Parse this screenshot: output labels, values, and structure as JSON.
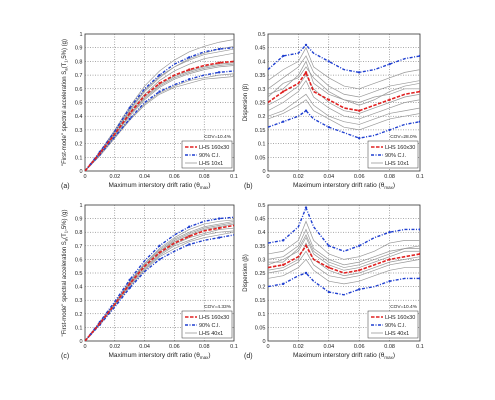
{
  "shared": {
    "ylabel_left_prefix": "\"First-mode\" spectral acceleration S",
    "ylabel_left_suffix": "(T",
    "ylabel_left_tail": ",5%) (g)",
    "ylabel_sub_a": "a",
    "ylabel_sub_1": "1",
    "ylabel_right": "Dispersion (β)",
    "xlabel_main": "Maximum interstory drift ratio (θ",
    "xlabel_sub": "max",
    "xlabel_end": ")"
  },
  "colors": {
    "median": "#e02020",
    "ci": "#1f3fd0",
    "samples": "#999999",
    "grid": "#555555"
  },
  "chart_data": [
    {
      "panel": "(a)",
      "type": "line",
      "xlim": [
        0,
        0.1
      ],
      "ylim": [
        0,
        1
      ],
      "xticks": [
        "0",
        "0.02",
        "0.04",
        "0.06",
        "0.08",
        "0.1"
      ],
      "yticks": [
        "0",
        "0.1",
        "0.2",
        "0.3",
        "0.4",
        "0.5",
        "0.6",
        "0.7",
        "0.8",
        "0.9",
        "1"
      ],
      "annotation": "COV=10.4%",
      "legend": [
        "LHS 160x30",
        "90% C.I.",
        "LHS 10x1"
      ],
      "x": [
        0,
        0.01,
        0.02,
        0.03,
        0.04,
        0.05,
        0.06,
        0.07,
        0.08,
        0.09,
        0.1
      ],
      "series": [
        {
          "name": "LHS 160x30",
          "role": "median",
          "values": [
            0,
            0.13,
            0.27,
            0.42,
            0.55,
            0.64,
            0.7,
            0.74,
            0.77,
            0.79,
            0.8
          ]
        },
        {
          "name": "90% C.I.",
          "role": "ci",
          "values": [
            0,
            0.14,
            0.29,
            0.46,
            0.6,
            0.7,
            0.78,
            0.83,
            0.87,
            0.89,
            0.9
          ]
        },
        {
          "role": "ci",
          "values": [
            0,
            0.12,
            0.25,
            0.38,
            0.5,
            0.58,
            0.63,
            0.67,
            0.7,
            0.72,
            0.73
          ]
        },
        {
          "name": "LHS 10x1",
          "role": "sample",
          "values": [
            0,
            0.14,
            0.3,
            0.47,
            0.62,
            0.73,
            0.81,
            0.87,
            0.91,
            0.94,
            0.96
          ]
        },
        {
          "role": "sample",
          "values": [
            0,
            0.14,
            0.29,
            0.45,
            0.59,
            0.69,
            0.76,
            0.81,
            0.85,
            0.87,
            0.89
          ]
        },
        {
          "role": "sample",
          "values": [
            0,
            0.13,
            0.28,
            0.43,
            0.56,
            0.66,
            0.73,
            0.78,
            0.82,
            0.84,
            0.86
          ]
        },
        {
          "role": "sample",
          "values": [
            0,
            0.13,
            0.27,
            0.41,
            0.54,
            0.63,
            0.69,
            0.73,
            0.76,
            0.78,
            0.79
          ]
        },
        {
          "role": "sample",
          "values": [
            0,
            0.12,
            0.26,
            0.4,
            0.52,
            0.61,
            0.67,
            0.71,
            0.74,
            0.76,
            0.77
          ]
        },
        {
          "role": "sample",
          "values": [
            0,
            0.12,
            0.25,
            0.38,
            0.49,
            0.57,
            0.62,
            0.66,
            0.68,
            0.7,
            0.71
          ]
        },
        {
          "role": "sample",
          "values": [
            0,
            0.11,
            0.24,
            0.37,
            0.48,
            0.56,
            0.61,
            0.64,
            0.67,
            0.68,
            0.69
          ]
        },
        {
          "role": "sample",
          "values": [
            0,
            0.13,
            0.28,
            0.44,
            0.58,
            0.68,
            0.76,
            0.82,
            0.86,
            0.89,
            0.91
          ]
        },
        {
          "role": "sample",
          "values": [
            0,
            0.12,
            0.26,
            0.41,
            0.53,
            0.62,
            0.68,
            0.72,
            0.75,
            0.77,
            0.78
          ]
        }
      ]
    },
    {
      "panel": "(b)",
      "type": "line",
      "xlim": [
        0,
        0.1
      ],
      "ylim": [
        0,
        0.5
      ],
      "xticks": [
        "0",
        "0.02",
        "0.04",
        "0.06",
        "0.08",
        "0.1"
      ],
      "yticks": [
        "0",
        "0.05",
        "0.1",
        "0.15",
        "0.2",
        "0.25",
        "0.3",
        "0.35",
        "0.4",
        "0.45",
        "0.5"
      ],
      "annotation": "COV=28.0%",
      "legend": [
        "LHS 160x30",
        "90% C.I.",
        "LHS 10x1"
      ],
      "x": [
        0,
        0.01,
        0.02,
        0.025,
        0.03,
        0.04,
        0.05,
        0.06,
        0.07,
        0.08,
        0.09,
        0.1
      ],
      "series": [
        {
          "name": "LHS 160x30",
          "role": "median",
          "values": [
            0.25,
            0.29,
            0.32,
            0.36,
            0.29,
            0.26,
            0.23,
            0.22,
            0.24,
            0.26,
            0.28,
            0.29
          ]
        },
        {
          "name": "90% C.I.",
          "role": "ci",
          "values": [
            0.37,
            0.42,
            0.43,
            0.46,
            0.43,
            0.4,
            0.37,
            0.36,
            0.37,
            0.39,
            0.41,
            0.42
          ]
        },
        {
          "role": "ci",
          "values": [
            0.16,
            0.18,
            0.2,
            0.22,
            0.19,
            0.16,
            0.14,
            0.12,
            0.13,
            0.15,
            0.17,
            0.18
          ]
        },
        {
          "name": "LHS 10x1",
          "role": "sample",
          "values": [
            0.3,
            0.34,
            0.38,
            0.42,
            0.36,
            0.31,
            0.28,
            0.27,
            0.29,
            0.31,
            0.32,
            0.33
          ]
        },
        {
          "role": "sample",
          "values": [
            0.22,
            0.25,
            0.29,
            0.33,
            0.27,
            0.23,
            0.2,
            0.19,
            0.21,
            0.23,
            0.25,
            0.26
          ]
        },
        {
          "role": "sample",
          "values": [
            0.28,
            0.3,
            0.35,
            0.4,
            0.32,
            0.28,
            0.26,
            0.25,
            0.27,
            0.28,
            0.3,
            0.3
          ]
        },
        {
          "role": "sample",
          "values": [
            0.2,
            0.22,
            0.26,
            0.28,
            0.24,
            0.2,
            0.18,
            0.17,
            0.19,
            0.21,
            0.22,
            0.23
          ]
        },
        {
          "role": "sample",
          "values": [
            0.33,
            0.37,
            0.4,
            0.45,
            0.38,
            0.34,
            0.31,
            0.3,
            0.32,
            0.34,
            0.36,
            0.37
          ]
        },
        {
          "role": "sample",
          "values": [
            0.24,
            0.27,
            0.31,
            0.35,
            0.3,
            0.25,
            0.22,
            0.21,
            0.23,
            0.25,
            0.27,
            0.28
          ]
        },
        {
          "role": "sample",
          "values": [
            0.27,
            0.32,
            0.34,
            0.38,
            0.34,
            0.29,
            0.26,
            0.24,
            0.26,
            0.29,
            0.31,
            0.32
          ]
        },
        {
          "role": "sample",
          "values": [
            0.19,
            0.21,
            0.24,
            0.26,
            0.22,
            0.19,
            0.16,
            0.15,
            0.17,
            0.19,
            0.2,
            0.21
          ]
        }
      ]
    },
    {
      "panel": "(c)",
      "type": "line",
      "xlim": [
        0,
        0.1
      ],
      "ylim": [
        0,
        1
      ],
      "xticks": [
        "0",
        "0.02",
        "0.04",
        "0.06",
        "0.08",
        "0.1"
      ],
      "yticks": [
        "0",
        "0.1",
        "0.2",
        "0.3",
        "0.4",
        "0.5",
        "0.6",
        "0.7",
        "0.8",
        "0.9",
        "1"
      ],
      "annotation": "COV=4.33%",
      "legend": [
        "LHS 160x30",
        "90% C.I.",
        "LHS 40x1"
      ],
      "x": [
        0,
        0.01,
        0.02,
        0.03,
        0.04,
        0.05,
        0.06,
        0.07,
        0.08,
        0.09,
        0.1
      ],
      "series": [
        {
          "name": "LHS 160x30",
          "role": "median",
          "values": [
            0,
            0.13,
            0.27,
            0.42,
            0.55,
            0.65,
            0.72,
            0.77,
            0.81,
            0.83,
            0.85
          ]
        },
        {
          "name": "90% C.I.",
          "role": "ci",
          "values": [
            0,
            0.14,
            0.29,
            0.45,
            0.59,
            0.7,
            0.78,
            0.84,
            0.88,
            0.9,
            0.91
          ]
        },
        {
          "role": "ci",
          "values": [
            0,
            0.12,
            0.25,
            0.39,
            0.51,
            0.6,
            0.66,
            0.71,
            0.74,
            0.76,
            0.78
          ]
        },
        {
          "name": "LHS 40x1",
          "role": "sample",
          "values": [
            0,
            0.13,
            0.28,
            0.44,
            0.57,
            0.67,
            0.75,
            0.8,
            0.84,
            0.86,
            0.88
          ]
        },
        {
          "role": "sample",
          "values": [
            0,
            0.13,
            0.27,
            0.43,
            0.56,
            0.66,
            0.73,
            0.78,
            0.82,
            0.84,
            0.86
          ]
        },
        {
          "role": "sample",
          "values": [
            0,
            0.13,
            0.27,
            0.42,
            0.54,
            0.64,
            0.71,
            0.76,
            0.79,
            0.82,
            0.83
          ]
        },
        {
          "role": "sample",
          "values": [
            0,
            0.12,
            0.26,
            0.41,
            0.53,
            0.63,
            0.7,
            0.74,
            0.78,
            0.8,
            0.81
          ]
        },
        {
          "role": "sample",
          "values": [
            0,
            0.14,
            0.28,
            0.43,
            0.57,
            0.68,
            0.76,
            0.82,
            0.86,
            0.88,
            0.89
          ]
        },
        {
          "role": "sample",
          "values": [
            0,
            0.12,
            0.26,
            0.4,
            0.52,
            0.62,
            0.68,
            0.73,
            0.76,
            0.78,
            0.8
          ]
        },
        {
          "role": "sample",
          "values": [
            0,
            0.13,
            0.28,
            0.43,
            0.56,
            0.66,
            0.74,
            0.79,
            0.83,
            0.85,
            0.87
          ]
        }
      ]
    },
    {
      "panel": "(d)",
      "type": "line",
      "xlim": [
        0,
        0.1
      ],
      "ylim": [
        0,
        0.5
      ],
      "xticks": [
        "0",
        "0.02",
        "0.04",
        "0.06",
        "0.08",
        "0.1"
      ],
      "yticks": [
        "0",
        "0.05",
        "0.1",
        "0.15",
        "0.2",
        "0.25",
        "0.3",
        "0.35",
        "0.4",
        "0.45",
        "0.5"
      ],
      "annotation": "COV=10.4%",
      "legend": [
        "LHS 160x30",
        "90% C.I.",
        "LHS 40x1"
      ],
      "x": [
        0,
        0.01,
        0.02,
        0.025,
        0.03,
        0.04,
        0.05,
        0.06,
        0.07,
        0.08,
        0.09,
        0.1
      ],
      "series": [
        {
          "name": "LHS 160x30",
          "role": "median",
          "values": [
            0.27,
            0.28,
            0.31,
            0.35,
            0.3,
            0.27,
            0.25,
            0.26,
            0.28,
            0.3,
            0.31,
            0.32
          ]
        },
        {
          "name": "90% C.I.",
          "role": "ci",
          "values": [
            0.36,
            0.37,
            0.42,
            0.49,
            0.42,
            0.35,
            0.33,
            0.35,
            0.38,
            0.4,
            0.41,
            0.41
          ]
        },
        {
          "role": "ci",
          "values": [
            0.2,
            0.21,
            0.24,
            0.25,
            0.22,
            0.18,
            0.17,
            0.19,
            0.2,
            0.22,
            0.23,
            0.23
          ]
        },
        {
          "name": "LHS 40x1",
          "role": "sample",
          "values": [
            0.3,
            0.31,
            0.35,
            0.41,
            0.34,
            0.3,
            0.28,
            0.29,
            0.31,
            0.33,
            0.34,
            0.35
          ]
        },
        {
          "role": "sample",
          "values": [
            0.25,
            0.26,
            0.29,
            0.33,
            0.28,
            0.24,
            0.23,
            0.24,
            0.26,
            0.28,
            0.29,
            0.3
          ]
        },
        {
          "role": "sample",
          "values": [
            0.28,
            0.3,
            0.33,
            0.38,
            0.32,
            0.28,
            0.26,
            0.27,
            0.29,
            0.31,
            0.33,
            0.33
          ]
        },
        {
          "role": "sample",
          "values": [
            0.23,
            0.24,
            0.27,
            0.3,
            0.26,
            0.22,
            0.21,
            0.22,
            0.24,
            0.26,
            0.27,
            0.27
          ]
        },
        {
          "role": "sample",
          "values": [
            0.32,
            0.33,
            0.37,
            0.44,
            0.37,
            0.32,
            0.3,
            0.31,
            0.33,
            0.36,
            0.37,
            0.37
          ]
        },
        {
          "role": "sample",
          "values": [
            0.26,
            0.27,
            0.3,
            0.36,
            0.3,
            0.26,
            0.24,
            0.25,
            0.27,
            0.29,
            0.3,
            0.31
          ]
        },
        {
          "role": "sample",
          "values": [
            0.29,
            0.29,
            0.34,
            0.39,
            0.33,
            0.29,
            0.27,
            0.28,
            0.3,
            0.32,
            0.34,
            0.34
          ]
        }
      ]
    }
  ]
}
